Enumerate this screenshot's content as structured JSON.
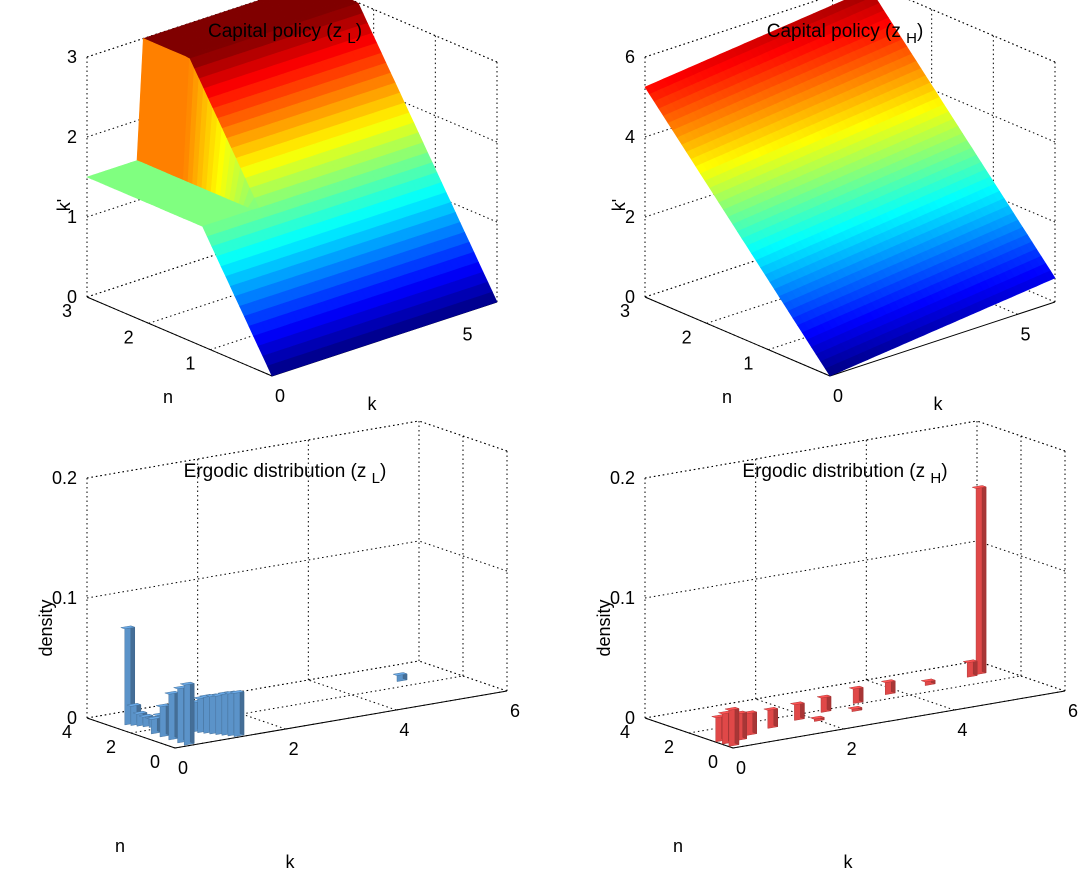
{
  "chart_data": [
    {
      "type": "surface",
      "title_main": "Capital policy (z",
      "title_sub": "L",
      "title_close": ")",
      "xlabel": "k",
      "ylabel": "n",
      "zlabel": "k'",
      "xlim": [
        0,
        6
      ],
      "ylim": [
        0,
        3
      ],
      "zlim": [
        0,
        3
      ],
      "xticks": [
        "0",
        "5"
      ],
      "yticks": [
        "1",
        "2",
        "3"
      ],
      "zticks": [
        "0",
        "1",
        "2",
        "3"
      ],
      "grid": true,
      "colormap": "jet",
      "cap_value": 3,
      "flat_value": 1.5,
      "kink_k": 1.5,
      "slope_n": 1.33
    },
    {
      "type": "surface",
      "title_main": "Capital policy (z",
      "title_sub": "H",
      "title_close": ")",
      "xlabel": "k",
      "ylabel": "n",
      "zlabel": "k'",
      "xlim": [
        0,
        6
      ],
      "ylim": [
        0,
        3
      ],
      "zlim": [
        0,
        6
      ],
      "xticks": [
        "0",
        "5"
      ],
      "yticks": [
        "1",
        "2",
        "3"
      ],
      "zticks": [
        "0",
        "2",
        "4",
        "6"
      ],
      "grid": true,
      "colormap": "jet",
      "intercept": 0,
      "slope_n": 1.75,
      "k_effect": 0.1
    },
    {
      "type": "bar3d",
      "title_main": "Ergodic distribution (z",
      "title_sub": "L",
      "title_close": ")",
      "xlabel": "k",
      "ylabel": "n",
      "zlabel": "density",
      "xlim": [
        0,
        6
      ],
      "ylim": [
        0,
        4
      ],
      "zlim": [
        0,
        0.2
      ],
      "xticks": [
        "0",
        "2",
        "4",
        "6"
      ],
      "yticks": [
        "0",
        "2",
        "4"
      ],
      "zticks": [
        "0",
        "0.1",
        "0.2"
      ],
      "grid": true,
      "bar_color": "#5b93c9",
      "bars": [
        {
          "k": 0.3,
          "n": 2.9,
          "v": 0.08
        },
        {
          "k": 0.35,
          "n": 2.75,
          "v": 0.016
        },
        {
          "k": 0.4,
          "n": 2.6,
          "v": 0.01
        },
        {
          "k": 0.45,
          "n": 2.45,
          "v": 0.008
        },
        {
          "k": 0.5,
          "n": 2.3,
          "v": 0.007
        },
        {
          "k": 0.55,
          "n": 2.15,
          "v": 0.006
        },
        {
          "k": 0.6,
          "n": 2.0,
          "v": 0.006
        },
        {
          "k": 0.65,
          "n": 1.85,
          "v": 0.006
        },
        {
          "k": 0.7,
          "n": 1.7,
          "v": 0.01
        },
        {
          "k": 0.75,
          "n": 1.55,
          "v": 0.014
        },
        {
          "k": 0.8,
          "n": 1.4,
          "v": 0.02
        },
        {
          "k": 0.85,
          "n": 1.25,
          "v": 0.024
        },
        {
          "k": 0.9,
          "n": 1.1,
          "v": 0.028
        },
        {
          "k": 0.95,
          "n": 0.95,
          "v": 0.03
        },
        {
          "k": 1.0,
          "n": 0.8,
          "v": 0.031
        },
        {
          "k": 1.05,
          "n": 0.65,
          "v": 0.032
        },
        {
          "k": 1.1,
          "n": 0.5,
          "v": 0.034
        },
        {
          "k": 1.15,
          "n": 0.35,
          "v": 0.035
        },
        {
          "k": 1.2,
          "n": 0.2,
          "v": 0.036
        },
        {
          "k": 0.5,
          "n": 2.75,
          "v": 0.006
        },
        {
          "k": 0.8,
          "n": 2.7,
          "v": 0.005
        },
        {
          "k": 1.1,
          "n": 2.65,
          "v": 0.004
        },
        {
          "k": 1.4,
          "n": 2.6,
          "v": 0.003
        },
        {
          "k": 1.7,
          "n": 2.55,
          "v": 0.002
        },
        {
          "k": 5.1,
          "n": 2.6,
          "v": 0.005
        },
        {
          "k": 0.3,
          "n": 1.7,
          "v": 0.012
        },
        {
          "k": 0.3,
          "n": 1.3,
          "v": 0.025
        },
        {
          "k": 0.3,
          "n": 0.9,
          "v": 0.038
        },
        {
          "k": 0.3,
          "n": 0.5,
          "v": 0.045
        },
        {
          "k": 0.3,
          "n": 0.2,
          "v": 0.05
        }
      ]
    },
    {
      "type": "bar3d",
      "title_main": "Ergodic distribution (z",
      "title_sub": "H",
      "title_close": ")",
      "xlabel": "k",
      "ylabel": "n",
      "zlabel": "density",
      "xlim": [
        0,
        6
      ],
      "ylim": [
        0,
        4
      ],
      "zlim": [
        0,
        0.2
      ],
      "xticks": [
        "0",
        "2",
        "4",
        "6"
      ],
      "yticks": [
        "0",
        "2",
        "4"
      ],
      "zticks": [
        "0",
        "0.1",
        "0.2"
      ],
      "grid": true,
      "bar_color": "#e04848",
      "bars": [
        {
          "k": 0.1,
          "n": 0.3,
          "v": 0.03
        },
        {
          "k": 0.1,
          "n": 0.6,
          "v": 0.025
        },
        {
          "k": 0.1,
          "n": 0.9,
          "v": 0.02
        },
        {
          "k": 0.4,
          "n": 0.7,
          "v": 0.022
        },
        {
          "k": 0.7,
          "n": 1.0,
          "v": 0.018
        },
        {
          "k": 1.2,
          "n": 1.3,
          "v": 0.015
        },
        {
          "k": 1.8,
          "n": 1.6,
          "v": 0.013
        },
        {
          "k": 2.4,
          "n": 1.9,
          "v": 0.012
        },
        {
          "k": 3.1,
          "n": 2.2,
          "v": 0.012
        },
        {
          "k": 3.8,
          "n": 2.5,
          "v": 0.01
        },
        {
          "k": 1.0,
          "n": 2.5,
          "v": 0.004
        },
        {
          "k": 5.6,
          "n": 2.9,
          "v": 0.155
        },
        {
          "k": 5.4,
          "n": 2.8,
          "v": 0.012
        },
        {
          "k": 4.6,
          "n": 2.7,
          "v": 0.003
        },
        {
          "k": 2.0,
          "n": 1.2,
          "v": 0.002
        },
        {
          "k": 2.8,
          "n": 1.5,
          "v": 0.002
        }
      ]
    }
  ]
}
